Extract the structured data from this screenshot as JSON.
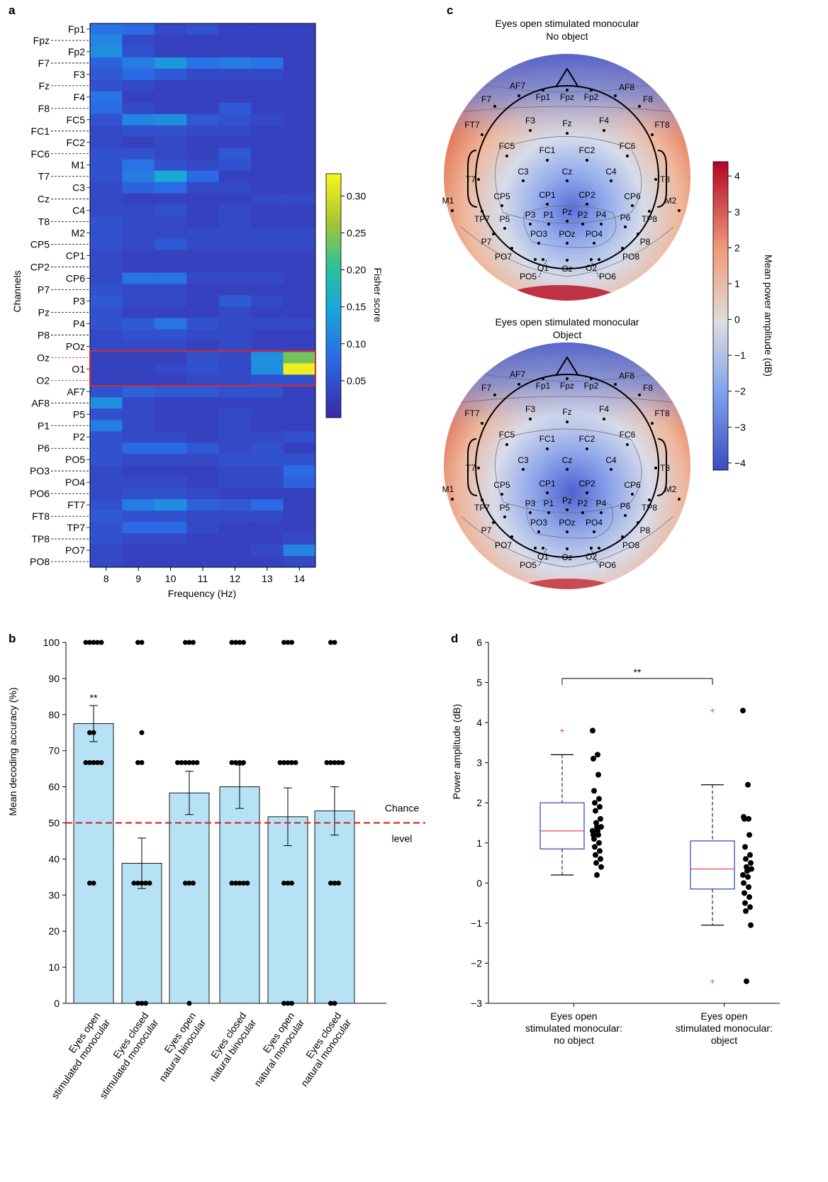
{
  "panels": {
    "a": "a",
    "b": "b",
    "c": "c",
    "d": "d"
  },
  "colors": {
    "bar_fill": "#b7e2f5",
    "chance_line": "#d32f2f",
    "highlight_box": "#d42a2a",
    "box_edge": "#2b3fb8",
    "median": "#e53935",
    "outlier": "#e53935"
  },
  "chart_data": [
    {
      "id": "a",
      "type": "heatmap",
      "xlabel": "Frequency (Hz)",
      "ylabel": "Channels",
      "x": [
        "8",
        "9",
        "10",
        "11",
        "12",
        "13",
        "14"
      ],
      "rows": [
        "Fp1",
        "Fpz",
        "Fp2",
        "F7",
        "F3",
        "Fz",
        "F4",
        "F8",
        "FC5",
        "FC1",
        "FC2",
        "FC6",
        "M1",
        "T7",
        "C3",
        "Cz",
        "C4",
        "T8",
        "M2",
        "CP5",
        "CP1",
        "CP2",
        "CP6",
        "P7",
        "P3",
        "Pz",
        "P4",
        "P8",
        "POz",
        "Oz",
        "O1",
        "O2",
        "AF7",
        "AF8",
        "P5",
        "P1",
        "P2",
        "P6",
        "PO5",
        "PO3",
        "PO4",
        "PO6",
        "FT7",
        "FT8",
        "TP7",
        "TP8",
        "PO7",
        "PO8"
      ],
      "colorbar": {
        "label": "Fisher score",
        "range": [
          0,
          0.33
        ],
        "ticks": [
          "0.05",
          "0.10",
          "0.15",
          "0.20",
          "0.25",
          "0.30"
        ]
      },
      "highlight_rows": [
        "Oz",
        "O1",
        "O2"
      ],
      "values": [
        [
          0.09,
          0.08,
          0.04,
          0.05,
          0.03,
          0.03,
          0.03
        ],
        [
          0.11,
          0.04,
          0.03,
          0.03,
          0.03,
          0.03,
          0.03
        ],
        [
          0.12,
          0.05,
          0.03,
          0.03,
          0.03,
          0.03,
          0.03
        ],
        [
          0.07,
          0.1,
          0.13,
          0.09,
          0.1,
          0.09,
          0.03
        ],
        [
          0.06,
          0.08,
          0.06,
          0.04,
          0.04,
          0.04,
          0.03
        ],
        [
          0.05,
          0.04,
          0.03,
          0.03,
          0.03,
          0.03,
          0.03
        ],
        [
          0.09,
          0.03,
          0.03,
          0.03,
          0.03,
          0.03,
          0.03
        ],
        [
          0.08,
          0.04,
          0.03,
          0.03,
          0.06,
          0.03,
          0.03
        ],
        [
          0.05,
          0.11,
          0.12,
          0.06,
          0.05,
          0.04,
          0.03
        ],
        [
          0.04,
          0.05,
          0.05,
          0.04,
          0.04,
          0.03,
          0.03
        ],
        [
          0.04,
          0.03,
          0.04,
          0.03,
          0.03,
          0.03,
          0.03
        ],
        [
          0.05,
          0.05,
          0.04,
          0.03,
          0.06,
          0.03,
          0.03
        ],
        [
          0.05,
          0.09,
          0.05,
          0.04,
          0.05,
          0.03,
          0.03
        ],
        [
          0.05,
          0.1,
          0.15,
          0.08,
          0.03,
          0.03,
          0.03
        ],
        [
          0.04,
          0.07,
          0.08,
          0.04,
          0.04,
          0.03,
          0.03
        ],
        [
          0.04,
          0.03,
          0.03,
          0.03,
          0.03,
          0.04,
          0.04
        ],
        [
          0.04,
          0.04,
          0.05,
          0.03,
          0.04,
          0.03,
          0.03
        ],
        [
          0.05,
          0.04,
          0.04,
          0.03,
          0.04,
          0.03,
          0.03
        ],
        [
          0.05,
          0.04,
          0.04,
          0.04,
          0.04,
          0.04,
          0.04
        ],
        [
          0.05,
          0.04,
          0.06,
          0.04,
          0.04,
          0.04,
          0.04
        ],
        [
          0.04,
          0.03,
          0.03,
          0.03,
          0.03,
          0.03,
          0.03
        ],
        [
          0.04,
          0.03,
          0.03,
          0.03,
          0.03,
          0.03,
          0.03
        ],
        [
          0.04,
          0.09,
          0.09,
          0.04,
          0.04,
          0.04,
          0.03
        ],
        [
          0.05,
          0.04,
          0.04,
          0.03,
          0.03,
          0.03,
          0.03
        ],
        [
          0.06,
          0.04,
          0.04,
          0.03,
          0.06,
          0.04,
          0.03
        ],
        [
          0.05,
          0.03,
          0.03,
          0.03,
          0.04,
          0.03,
          0.03
        ],
        [
          0.05,
          0.06,
          0.09,
          0.05,
          0.04,
          0.04,
          0.04
        ],
        [
          0.04,
          0.05,
          0.05,
          0.04,
          0.04,
          0.03,
          0.03
        ],
        [
          0.04,
          0.04,
          0.04,
          0.03,
          0.04,
          0.03,
          0.03
        ],
        [
          0.03,
          0.03,
          0.03,
          0.05,
          0.04,
          0.12,
          0.24
        ],
        [
          0.03,
          0.03,
          0.04,
          0.05,
          0.04,
          0.12,
          0.32
        ],
        [
          0.03,
          0.03,
          0.03,
          0.04,
          0.04,
          0.05,
          0.05
        ],
        [
          0.05,
          0.07,
          0.06,
          0.06,
          0.05,
          0.05,
          0.03
        ],
        [
          0.12,
          0.04,
          0.03,
          0.03,
          0.03,
          0.03,
          0.03
        ],
        [
          0.05,
          0.04,
          0.03,
          0.03,
          0.04,
          0.03,
          0.03
        ],
        [
          0.1,
          0.04,
          0.03,
          0.03,
          0.04,
          0.03,
          0.03
        ],
        [
          0.05,
          0.04,
          0.04,
          0.03,
          0.04,
          0.04,
          0.05
        ],
        [
          0.05,
          0.08,
          0.08,
          0.06,
          0.04,
          0.05,
          0.03
        ],
        [
          0.05,
          0.04,
          0.04,
          0.04,
          0.05,
          0.05,
          0.05
        ],
        [
          0.04,
          0.03,
          0.03,
          0.03,
          0.04,
          0.04,
          0.08
        ],
        [
          0.04,
          0.04,
          0.04,
          0.03,
          0.04,
          0.04,
          0.07
        ],
        [
          0.04,
          0.05,
          0.05,
          0.04,
          0.03,
          0.03,
          0.03
        ],
        [
          0.05,
          0.1,
          0.12,
          0.07,
          0.06,
          0.08,
          0.03
        ],
        [
          0.06,
          0.05,
          0.05,
          0.04,
          0.04,
          0.04,
          0.03
        ],
        [
          0.05,
          0.08,
          0.08,
          0.04,
          0.03,
          0.03,
          0.03
        ],
        [
          0.05,
          0.04,
          0.04,
          0.03,
          0.03,
          0.03,
          0.04
        ],
        [
          0.04,
          0.03,
          0.03,
          0.03,
          0.03,
          0.04,
          0.11
        ],
        [
          0.04,
          0.03,
          0.03,
          0.03,
          0.03,
          0.03,
          0.04
        ]
      ]
    },
    {
      "id": "b",
      "type": "bar",
      "ylabel": "Mean decoding accuracy (%)",
      "ylim": [
        0,
        100
      ],
      "yticks": [
        "0",
        "10",
        "20",
        "30",
        "40",
        "50",
        "60",
        "70",
        "80",
        "90",
        "100"
      ],
      "categories": [
        [
          "Eyes open",
          "stimulated monocular"
        ],
        [
          "Eyes closed",
          "stimulated monocular"
        ],
        [
          "Eyes open",
          "natural binocular"
        ],
        [
          "Eyes closed",
          "natural binocular"
        ],
        [
          "Eyes open",
          "natural monocular"
        ],
        [
          "Eyes closed",
          "natural monocular"
        ]
      ],
      "values": [
        77.5,
        38.8,
        58.3,
        60.0,
        51.7,
        53.3
      ],
      "sem": [
        5,
        7,
        6,
        6,
        8,
        6.7
      ],
      "significance": [
        "**",
        "",
        "",
        "",
        "",
        ""
      ],
      "chance_level": 50,
      "chance_label": [
        "Chance",
        "level"
      ],
      "points": [
        [
          100,
          100,
          100,
          100,
          100,
          75,
          75,
          66.7,
          66.7,
          66.7,
          66.7,
          66.7,
          33.3,
          33.3
        ],
        [
          100,
          100,
          75,
          66.7,
          66.7,
          33.3,
          33.3,
          33.3,
          33.3,
          33.3,
          0,
          0,
          0
        ],
        [
          100,
          100,
          100,
          66.7,
          66.7,
          66.7,
          66.7,
          66.7,
          66.7,
          33.3,
          33.3,
          33.3,
          0
        ],
        [
          100,
          100,
          100,
          100,
          66.7,
          66.7,
          66.7,
          66.7,
          33.3,
          33.3,
          33.3,
          33.3,
          33.3
        ],
        [
          100,
          100,
          100,
          66.7,
          66.7,
          66.7,
          66.7,
          66.7,
          33.3,
          33.3,
          33.3,
          0,
          0,
          0
        ],
        [
          100,
          100,
          66.7,
          66.7,
          66.7,
          66.7,
          66.7,
          33.3,
          33.3,
          33.3,
          0,
          0
        ]
      ]
    },
    {
      "id": "c",
      "type": "heatmap",
      "maps": [
        {
          "title": [
            "Eyes open stimulated monocular",
            "No object"
          ]
        },
        {
          "title": [
            "Eyes open stimulated monocular",
            "Object"
          ]
        }
      ],
      "colorbar": {
        "label": "Mean power amplitude (dB)",
        "range": [
          -4.2,
          4.4
        ],
        "ticks": [
          "4",
          "3",
          "2",
          "1",
          "0",
          "−1",
          "−2",
          "−3",
          "−4"
        ]
      },
      "electrodes": [
        "AF7",
        "Fp1",
        "Fpz",
        "Fp2",
        "AF8",
        "F7",
        "F3",
        "Fz",
        "F4",
        "F8",
        "FT7",
        "FC5",
        "FC1",
        "FC2",
        "FC6",
        "FT8",
        "T7",
        "C3",
        "Cz",
        "C4",
        "T8",
        "M1",
        "CP5",
        "CP1",
        "CP2",
        "CP6",
        "M2",
        "TP7",
        "P5",
        "P3",
        "P1",
        "Pz",
        "P2",
        "P4",
        "P6",
        "TP8",
        "P7",
        "PO3",
        "POz",
        "PO4",
        "P8",
        "PO7",
        "PO8",
        "O1",
        "Oz",
        "O2",
        "PO5",
        "PO6"
      ]
    },
    {
      "id": "d",
      "type": "scatter",
      "ylabel": "Power amplitude (dB)",
      "ylim": [
        -3,
        6
      ],
      "yticks": [
        "−3",
        "−2",
        "−1",
        "0",
        "1",
        "2",
        "3",
        "4",
        "5",
        "6"
      ],
      "categories": [
        [
          "Eyes open",
          "stimulated monocular:",
          "no object"
        ],
        [
          "Eyes open",
          "stimulated monocular:",
          "object"
        ]
      ],
      "significance": "**",
      "boxes": [
        {
          "q1": 0.85,
          "median": 1.3,
          "q3": 2.0,
          "whisker_low": 0.2,
          "whisker_high": 3.2,
          "outliers": [
            3.8
          ]
        },
        {
          "q1": -0.15,
          "median": 0.35,
          "q3": 1.05,
          "whisker_low": -1.05,
          "whisker_high": 2.45,
          "outliers": [
            4.3,
            -2.45
          ]
        }
      ],
      "points": [
        [
          3.8,
          3.2,
          3.1,
          2.7,
          2.3,
          2.1,
          2.0,
          1.9,
          1.8,
          1.6,
          1.5,
          1.4,
          1.4,
          1.3,
          1.3,
          1.2,
          1.2,
          1.1,
          1.0,
          0.9,
          0.8,
          0.7,
          0.6,
          0.5,
          0.4,
          0.2
        ],
        [
          4.3,
          2.45,
          1.65,
          1.6,
          1.6,
          1.2,
          0.9,
          0.7,
          0.6,
          0.5,
          0.4,
          0.35,
          0.3,
          0.2,
          0.15,
          0.0,
          -0.1,
          -0.25,
          -0.35,
          -0.5,
          -0.6,
          -0.7,
          -1.05,
          -2.45
        ]
      ]
    }
  ]
}
